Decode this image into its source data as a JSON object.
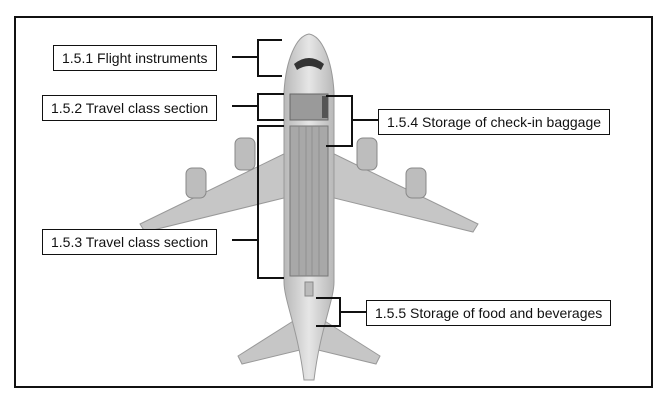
{
  "labels": {
    "flight_instruments": "1.5.1 Flight instruments",
    "travel_class_1": "1.5.2 Travel class section",
    "travel_class_2": "1.5.3 Travel class section",
    "checkin_baggage": "1.5.4 Storage of check-in baggage",
    "food_beverages": "1.5.5 Storage of food and beverages"
  },
  "colors": {
    "fuselage": "#cfcfcf",
    "wing": "#c4c4c4",
    "seat": "#7a7a7a",
    "outline": "#111111"
  }
}
